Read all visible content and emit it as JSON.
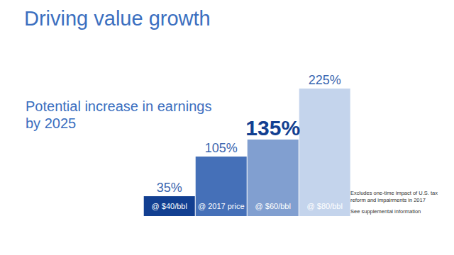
{
  "chart_data": {
    "type": "bar",
    "title": "Driving value growth",
    "subtitle": "Potential increase in earnings\nby 2025",
    "categories": [
      "@ $40/bbl",
      "@ 2017 price",
      "@ $60/bbl",
      "@ $80/bbl"
    ],
    "values": [
      35,
      105,
      135,
      225
    ],
    "value_labels": [
      "35%",
      "105%",
      "135%",
      "225%"
    ],
    "colors": [
      "#123f91",
      "#4570b8",
      "#819fd0",
      "#c4d4ec"
    ],
    "ylim": [
      0,
      225
    ],
    "tick_labels": false,
    "data_labels": true,
    "annotations": [
      "Excludes one-time impact of U.S. tax reform and impairments in 2017",
      "See supplemental information"
    ]
  }
}
